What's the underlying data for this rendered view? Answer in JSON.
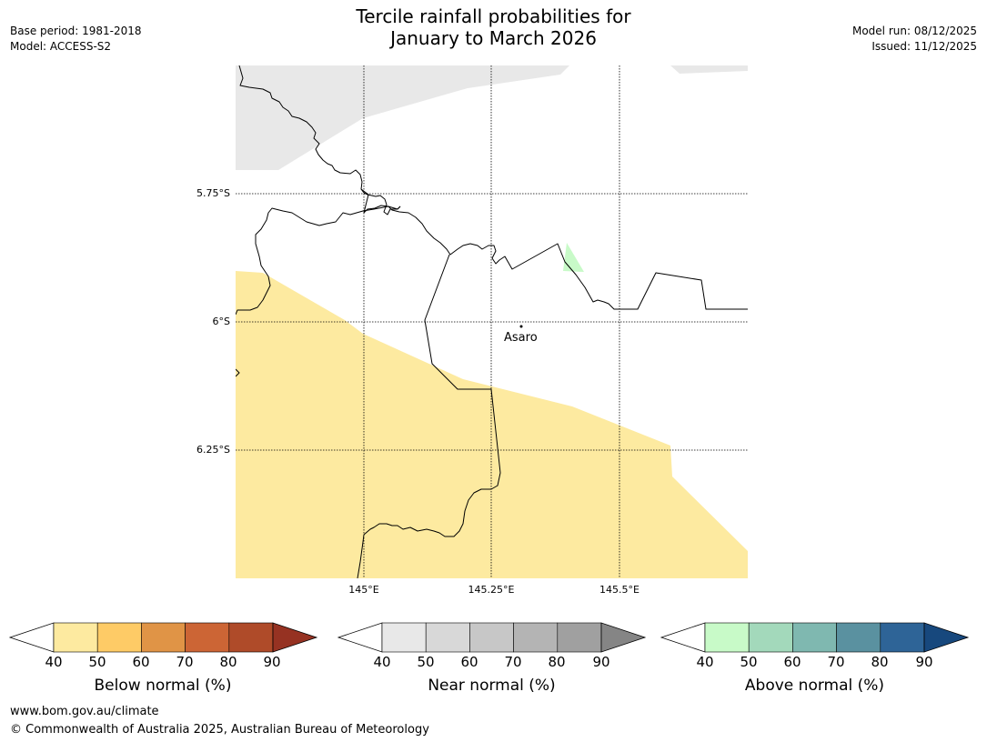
{
  "header": {
    "title_line1": "Tercile rainfall probabilities for",
    "title_line2": "January to March 2026",
    "base_period": "Base period: 1981-2018",
    "model": "Model: ACCESS-S2",
    "model_run": "Model run: 08/12/2025",
    "issued": "Issued: 11/12/2025"
  },
  "map": {
    "lat_labels": [
      "5.75°S",
      "6°S",
      "6.25°S"
    ],
    "lon_labels": [
      "145°E",
      "145.25°E",
      "145.5°E"
    ],
    "place": "Asaro"
  },
  "colorbars": [
    {
      "label": "Below normal (%)",
      "ticks": [
        "40",
        "50",
        "60",
        "70",
        "80",
        "90"
      ],
      "under_color": "#ffffff",
      "colors": [
        "#fdeaa0",
        "#fecb66",
        "#e09446",
        "#cc6535",
        "#af4b29"
      ],
      "over_color": "#963222"
    },
    {
      "label": "Near normal (%)",
      "ticks": [
        "40",
        "50",
        "60",
        "70",
        "80",
        "90"
      ],
      "under_color": "#ffffff",
      "colors": [
        "#e8e8e8",
        "#d8d8d8",
        "#c7c7c7",
        "#b4b4b4",
        "#a0a0a0"
      ],
      "over_color": "#858585"
    },
    {
      "label": "Above normal (%)",
      "ticks": [
        "40",
        "50",
        "60",
        "70",
        "80",
        "90"
      ],
      "under_color": "#ffffff",
      "colors": [
        "#c8fac8",
        "#a3d9bb",
        "#7fb8b0",
        "#5a91a0",
        "#2e6497"
      ],
      "over_color": "#17487d"
    }
  ],
  "footer": {
    "website": "www.bom.gov.au/climate",
    "copyright": "© Commonwealth of Australia 2025, Australian Bureau of Meteorology"
  }
}
